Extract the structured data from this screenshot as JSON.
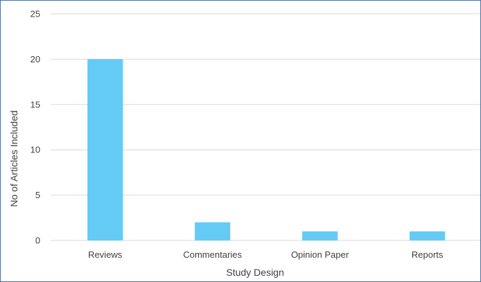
{
  "chart_data": {
    "type": "bar",
    "title": "",
    "xlabel": "Study Design",
    "ylabel": "No of Articles Included",
    "categories": [
      "Reviews",
      "Commentaries",
      "Opinion Paper",
      "Reports"
    ],
    "values": [
      20,
      2,
      1,
      1
    ],
    "ylim": [
      0,
      25
    ],
    "yticks": [
      0,
      5,
      10,
      15,
      20,
      25
    ],
    "grid": true,
    "legend": "none",
    "bar_color": "#63cbf5"
  }
}
